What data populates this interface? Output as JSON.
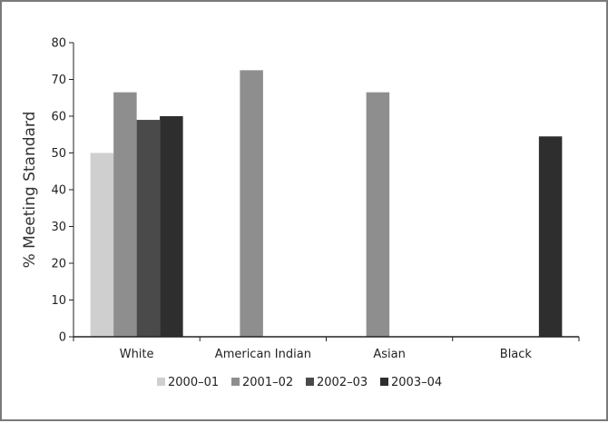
{
  "chart_data": {
    "type": "bar",
    "title": "",
    "xlabel": "",
    "ylabel": "% Meeting Standard",
    "ylim": [
      0,
      80
    ],
    "yticks": [
      0,
      10,
      20,
      30,
      40,
      50,
      60,
      70,
      80
    ],
    "categories": [
      "White",
      "American Indian",
      "Asian",
      "Black"
    ],
    "series": [
      {
        "name": "2000–01",
        "color": "#cfcfcf",
        "values": [
          50,
          0,
          0,
          0
        ]
      },
      {
        "name": "2001–02",
        "color": "#8e8e8e",
        "values": [
          66.5,
          72.5,
          66.5,
          0
        ]
      },
      {
        "name": "2002–03",
        "color": "#4a4a4a",
        "values": [
          59,
          0,
          0,
          0
        ]
      },
      {
        "name": "2003–04",
        "color": "#2e2e2e",
        "values": [
          60,
          0,
          0,
          54.5
        ]
      }
    ],
    "grid": false,
    "legend": "bottom"
  }
}
